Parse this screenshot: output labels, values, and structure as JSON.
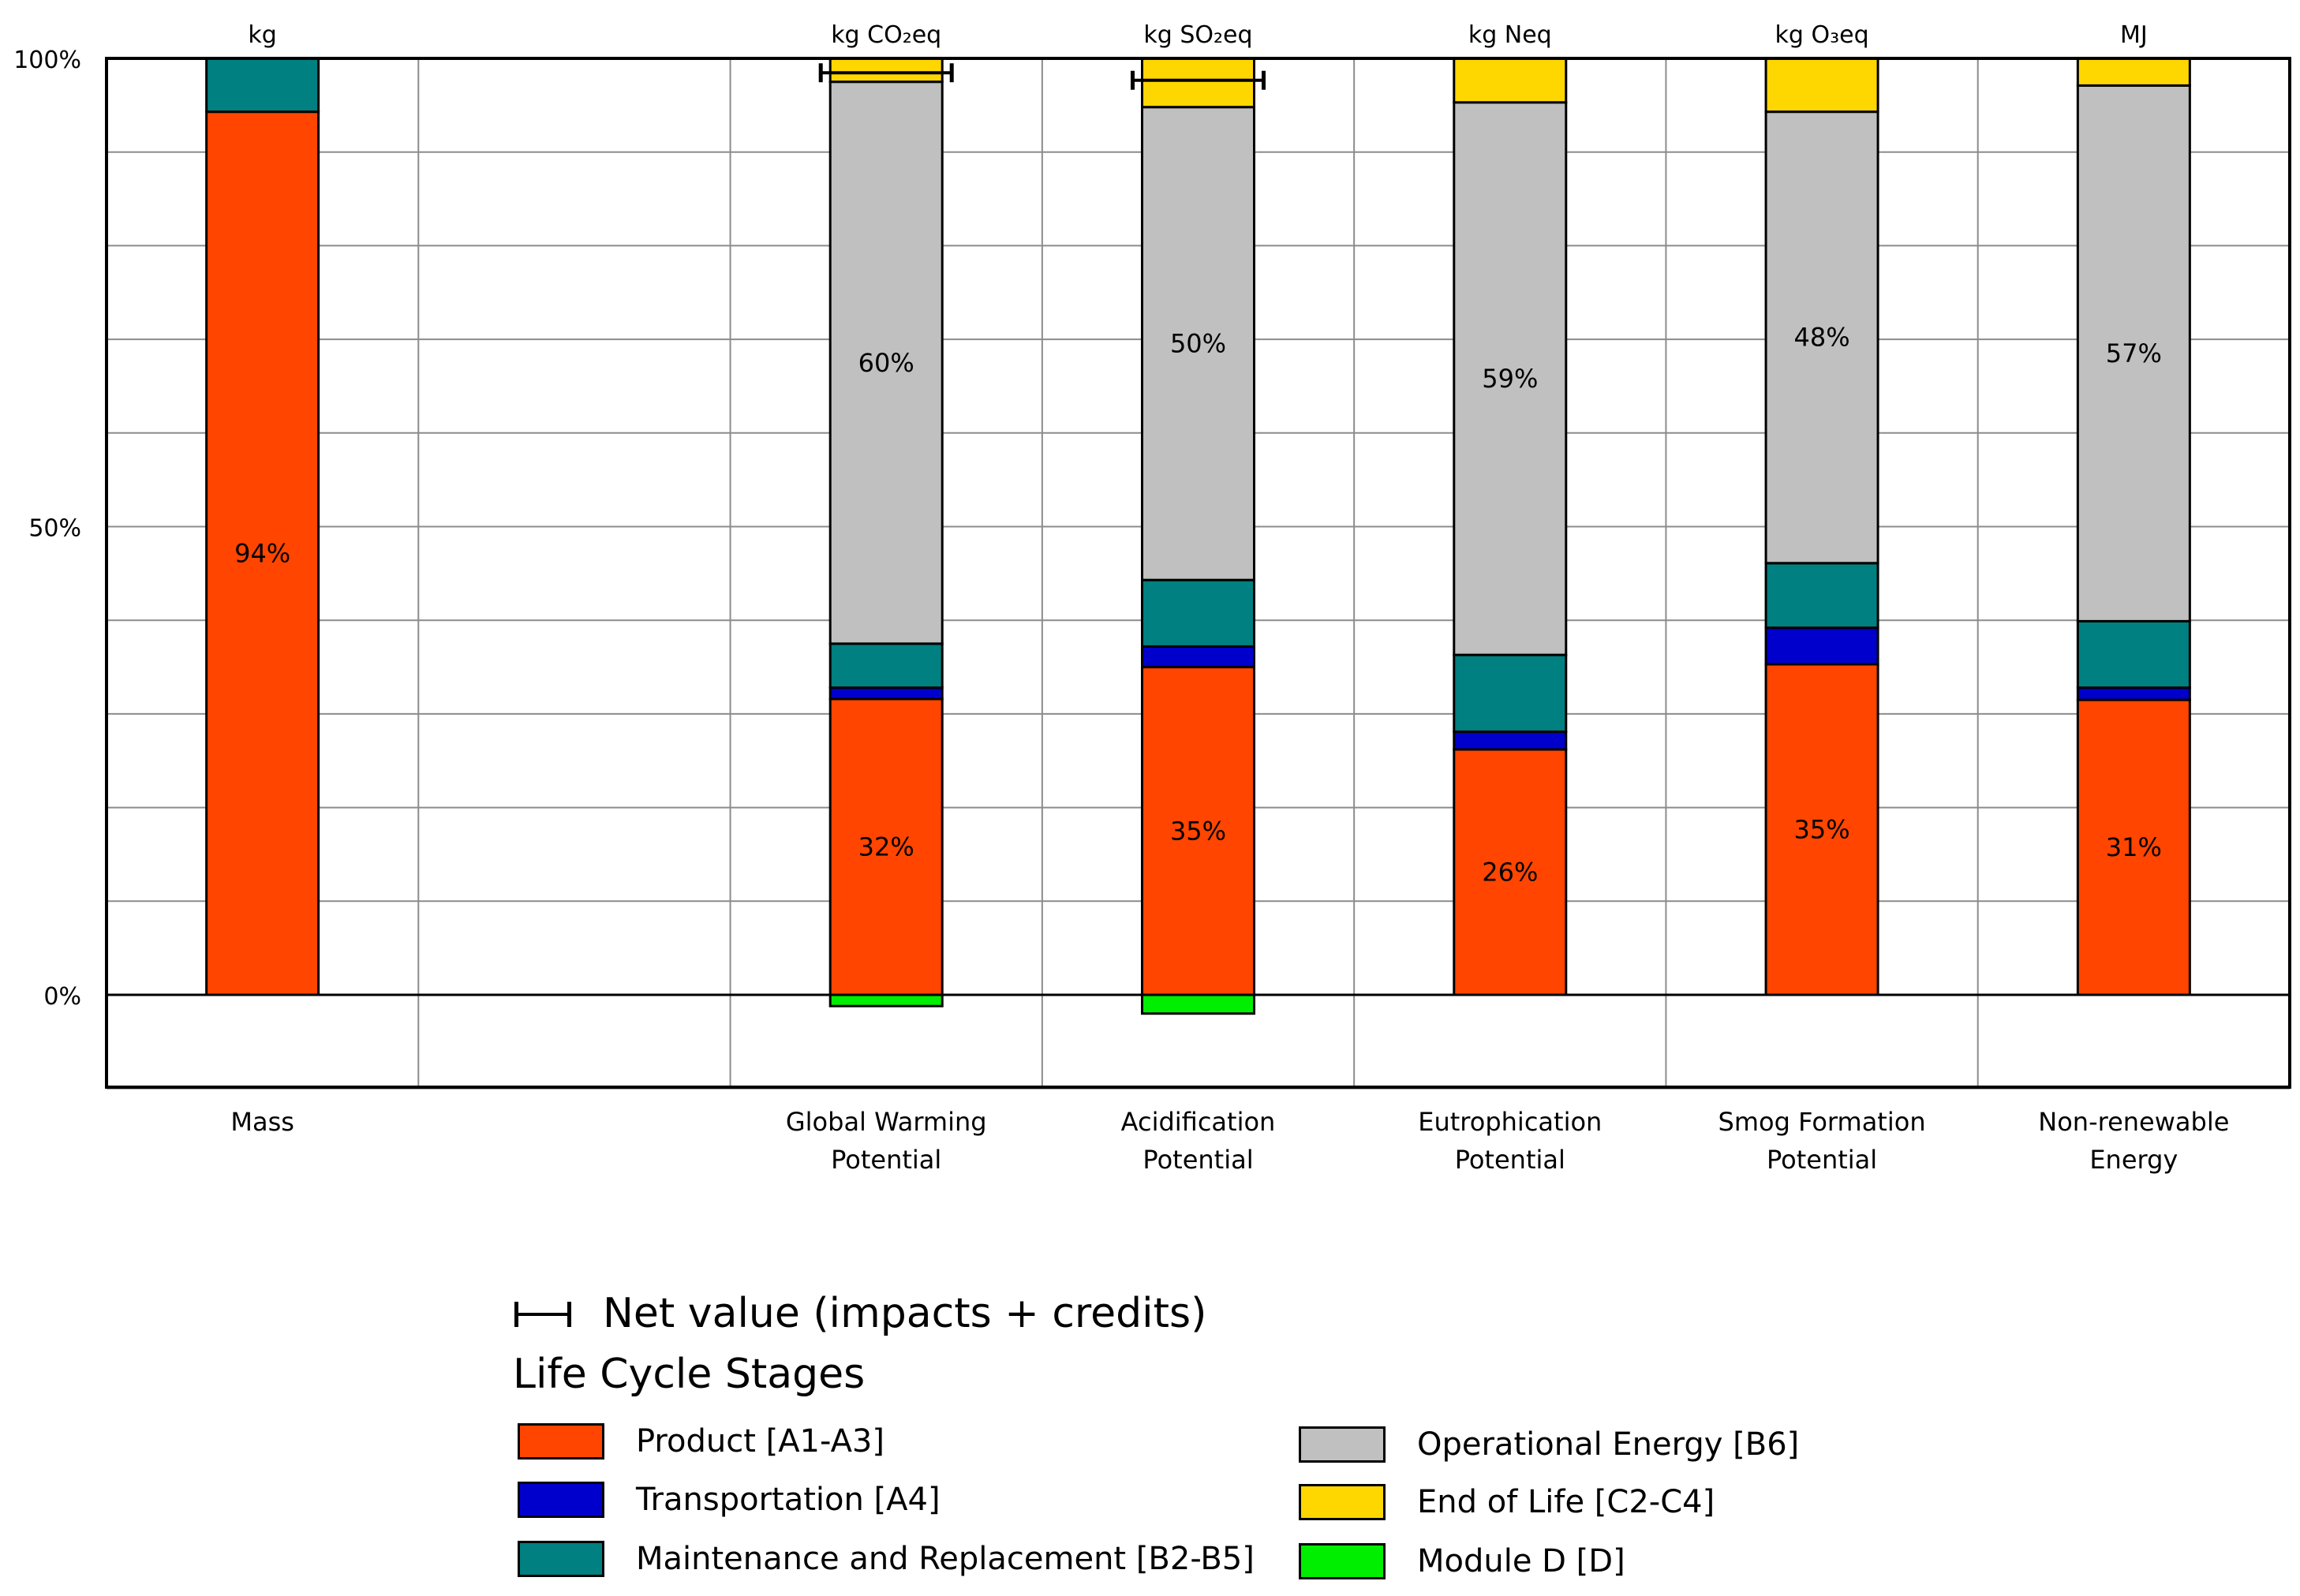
{
  "chart_data": {
    "type": "bar",
    "stacked": true,
    "normalized": true,
    "y_ticks": [
      "0%",
      "50%",
      "100%"
    ],
    "ylim_percent": [
      -10,
      100
    ],
    "grid": true,
    "stage_order_bottom_to_top": [
      "product",
      "transport",
      "maintenance",
      "operational",
      "eol"
    ],
    "categories": [
      {
        "key": "mass",
        "unit": "kg",
        "label": [
          "Mass"
        ],
        "segments": {
          "product": 94.3,
          "transport": 0,
          "maintenance": 5.7,
          "operational": 0,
          "eol": 0,
          "moduled": 0
        },
        "labels": {
          "product": "94%"
        },
        "net_bar": false
      },
      {
        "key": "empty",
        "unit": "",
        "label": [
          ""
        ],
        "empty": true
      },
      {
        "key": "gwp",
        "unit": "kg CO₂eq",
        "label": [
          "Global Warming",
          "Potential"
        ],
        "segments": {
          "product": 31.6,
          "transport": 1.2,
          "maintenance": 4.7,
          "operational": 60.0,
          "eol": 2.5,
          "moduled": -1.2
        },
        "labels": {
          "product": "32%",
          "operational": "60%"
        },
        "net_bar": true
      },
      {
        "key": "ap",
        "unit": "kg SO₂eq",
        "label": [
          "Acidification",
          "Potential"
        ],
        "segments": {
          "product": 35.0,
          "transport": 2.2,
          "maintenance": 7.1,
          "operational": 50.5,
          "eol": 5.2,
          "moduled": -2.0
        },
        "labels": {
          "product": "35%",
          "operational": "50%"
        },
        "net_bar": true
      },
      {
        "key": "ep",
        "unit": "kg Neq",
        "label": [
          "Eutrophication",
          "Potential"
        ],
        "segments": {
          "product": 26.2,
          "transport": 1.9,
          "maintenance": 8.2,
          "operational": 59.0,
          "eol": 4.7,
          "moduled": 0
        },
        "labels": {
          "product": "26%",
          "operational": "59%"
        },
        "net_bar": false
      },
      {
        "key": "sfp",
        "unit": "kg O₃eq",
        "label": [
          "Smog Formation",
          "Potential"
        ],
        "segments": {
          "product": 35.3,
          "transport": 3.9,
          "maintenance": 6.9,
          "operational": 48.2,
          "eol": 5.7,
          "moduled": 0
        },
        "labels": {
          "product": "35%",
          "operational": "48%"
        },
        "net_bar": false
      },
      {
        "key": "nre",
        "unit": "MJ",
        "label": [
          "Non-renewable",
          "Energy"
        ],
        "segments": {
          "product": 31.5,
          "transport": 1.3,
          "maintenance": 7.1,
          "operational": 57.2,
          "eol": 2.9,
          "moduled": 0
        },
        "labels": {
          "product": "31%",
          "operational": "57%"
        },
        "net_bar": false
      }
    ],
    "colors": {
      "product": "#FF4500",
      "transport": "#0000CD",
      "maintenance": "#008080",
      "operational": "#C0C0C0",
      "eol": "#FFD700",
      "moduled": "#00EE00"
    }
  },
  "legend": {
    "net_label": "Net value (impacts + credits)",
    "stages_title": "Life Cycle Stages",
    "items": [
      {
        "key": "product",
        "label": "Product [A1-A3]",
        "color": "#FF4500"
      },
      {
        "key": "transport",
        "label": "Transportation [A4]",
        "color": "#0000CD"
      },
      {
        "key": "maintenance",
        "label": "Maintenance and Replacement [B2-B5]",
        "color": "#008080"
      },
      {
        "key": "operational",
        "label": "Operational Energy [B6]",
        "color": "#C0C0C0"
      },
      {
        "key": "eol",
        "label": "End of Life [C2-C4]",
        "color": "#FFD700"
      },
      {
        "key": "moduled",
        "label": "Module D [D]",
        "color": "#00EE00"
      }
    ]
  }
}
